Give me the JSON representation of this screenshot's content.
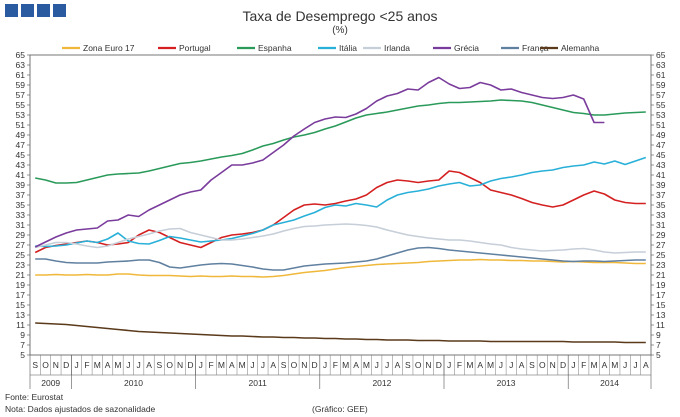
{
  "header": {
    "title": "Taxa de Desemprego <25 anos",
    "subtitle": "(%)",
    "logo_color": "#2a5aa0"
  },
  "footer": {
    "source": "Fonte: Eurostat",
    "note": "Nota: Dados ajustados de sazonalidade",
    "credit": "(Gráfico: GEE)"
  },
  "chart_data": {
    "type": "line",
    "title": "Taxa de Desemprego <25 anos",
    "unit": "(%)",
    "legend_position": "top",
    "ylim": [
      5,
      65
    ],
    "ytick_step": 2,
    "grid": false,
    "periods": [
      "S",
      "O",
      "N",
      "D",
      "J",
      "F",
      "M",
      "A",
      "M",
      "J",
      "J",
      "A",
      "S",
      "O",
      "N",
      "D",
      "J",
      "F",
      "M",
      "A",
      "M",
      "J",
      "J",
      "A",
      "S",
      "O",
      "N",
      "D",
      "J",
      "F",
      "M",
      "A",
      "M",
      "J",
      "J",
      "A",
      "S",
      "O",
      "N",
      "D",
      "J",
      "F",
      "M",
      "A",
      "M",
      "J",
      "J",
      "A",
      "S",
      "O",
      "N",
      "D",
      "J",
      "F",
      "M",
      "A",
      "M",
      "J",
      "J",
      "A"
    ],
    "years": [
      {
        "label": "2009",
        "months": 4
      },
      {
        "label": "2010",
        "months": 12
      },
      {
        "label": "2011",
        "months": 12
      },
      {
        "label": "2012",
        "months": 12
      },
      {
        "label": "2013",
        "months": 12
      },
      {
        "label": "2014",
        "months": 8
      }
    ],
    "series": [
      {
        "name": "Zona Euro 17",
        "color": "#f0b83a",
        "values": [
          21.0,
          21.0,
          21.1,
          21.0,
          21.0,
          21.1,
          21.0,
          21.0,
          21.2,
          21.2,
          21.0,
          20.9,
          20.9,
          20.9,
          20.8,
          20.7,
          20.8,
          20.7,
          20.7,
          20.8,
          20.7,
          20.7,
          20.6,
          20.7,
          20.9,
          21.2,
          21.5,
          21.7,
          21.9,
          22.2,
          22.5,
          22.7,
          22.9,
          23.1,
          23.2,
          23.3,
          23.4,
          23.5,
          23.7,
          23.8,
          23.9,
          24.0,
          24.0,
          24.1,
          24.0,
          24.0,
          23.9,
          23.9,
          23.8,
          23.8,
          23.7,
          23.6,
          23.7,
          23.6,
          23.5,
          23.5,
          23.5,
          23.4,
          23.3,
          23.3
        ]
      },
      {
        "name": "Portugal",
        "color": "#d42020",
        "values": [
          25.5,
          26.5,
          26.9,
          27.2,
          27.5,
          27.8,
          27.5,
          27.0,
          27.2,
          27.5,
          29.0,
          30.0,
          29.5,
          28.5,
          27.5,
          27.0,
          26.5,
          27.5,
          28.5,
          29.0,
          29.2,
          29.5,
          30.0,
          31.0,
          32.5,
          34.0,
          35.0,
          35.2,
          35.0,
          35.3,
          35.8,
          36.2,
          37.0,
          38.5,
          39.5,
          40.0,
          39.8,
          39.5,
          39.8,
          40.0,
          41.8,
          41.5,
          40.5,
          39.5,
          38.0,
          37.5,
          37.0,
          36.3,
          35.5,
          35.0,
          34.6,
          35.0,
          36.0,
          37.0,
          37.8,
          37.2,
          36.0,
          35.5,
          35.3,
          35.3
        ]
      },
      {
        "name": "Espanha",
        "color": "#2a9a5a",
        "values": [
          40.4,
          40.0,
          39.4,
          39.4,
          39.5,
          40.0,
          40.5,
          41.0,
          41.2,
          41.3,
          41.4,
          41.8,
          42.3,
          42.8,
          43.3,
          43.5,
          43.8,
          44.2,
          44.6,
          44.9,
          45.3,
          46.0,
          46.8,
          47.3,
          48.0,
          48.6,
          49.0,
          49.5,
          50.2,
          50.8,
          51.6,
          52.4,
          53.0,
          53.3,
          53.6,
          54.0,
          54.4,
          54.8,
          55.0,
          55.3,
          55.5,
          55.5,
          55.6,
          55.7,
          55.8,
          56.0,
          55.9,
          55.8,
          55.5,
          55.0,
          54.5,
          54.0,
          53.5,
          53.3,
          53.0,
          53.0,
          53.2,
          53.4,
          53.5,
          53.6
        ]
      },
      {
        "name": "Itália",
        "color": "#28b0d8",
        "values": [
          26.8,
          26.7,
          26.8,
          27.0,
          27.4,
          27.8,
          27.5,
          28.2,
          29.4,
          27.8,
          27.3,
          27.2,
          27.9,
          28.7,
          28.4,
          28.0,
          27.6,
          27.8,
          28.0,
          28.3,
          28.8,
          29.3,
          30.0,
          31.0,
          31.5,
          32.0,
          32.8,
          33.5,
          34.5,
          35.0,
          34.8,
          35.3,
          35.0,
          34.6,
          36.0,
          37.0,
          37.5,
          37.8,
          38.2,
          38.8,
          39.2,
          39.5,
          38.8,
          39.0,
          39.8,
          40.3,
          40.6,
          41.0,
          41.5,
          41.8,
          42.0,
          42.5,
          42.8,
          43.0,
          43.6,
          43.2,
          43.8,
          43.1,
          43.8,
          44.5
        ]
      },
      {
        "name": "Irlanda",
        "color": "#c6ced8",
        "values": [
          26.5,
          27.0,
          27.5,
          27.5,
          27.2,
          26.8,
          26.5,
          26.8,
          27.5,
          28.2,
          28.7,
          29.2,
          29.8,
          30.2,
          30.3,
          29.5,
          29.0,
          28.5,
          28.0,
          28.0,
          28.2,
          28.5,
          28.8,
          29.2,
          29.8,
          30.3,
          30.7,
          30.8,
          31.0,
          31.1,
          31.2,
          31.1,
          30.9,
          30.6,
          30.0,
          29.5,
          29.0,
          28.7,
          28.4,
          28.2,
          28.0,
          28.0,
          27.8,
          27.5,
          27.2,
          27.0,
          26.5,
          26.2,
          26.0,
          25.8,
          25.9,
          26.0,
          26.2,
          26.3,
          26.0,
          25.6,
          25.4,
          25.5,
          25.6,
          25.6
        ]
      },
      {
        "name": "Grécia",
        "color": "#7a3c9c",
        "values": [
          26.6,
          27.6,
          28.6,
          29.4,
          30.0,
          30.2,
          30.4,
          31.8,
          32.0,
          33.0,
          32.7,
          34.0,
          35.0,
          36.0,
          37.0,
          37.6,
          38.0,
          40.0,
          41.5,
          43.0,
          43.0,
          43.4,
          44.0,
          45.5,
          47.0,
          48.8,
          50.2,
          51.5,
          52.2,
          52.6,
          52.5,
          53.2,
          54.3,
          55.8,
          56.8,
          57.3,
          58.2,
          58.0,
          59.5,
          60.5,
          59.2,
          58.3,
          58.5,
          59.5,
          59.0,
          58.0,
          58.2,
          57.5,
          57.0,
          56.5,
          56.3,
          56.5,
          57.0,
          56.2,
          51.5,
          51.5,
          null,
          null,
          null,
          null
        ]
      },
      {
        "name": "França",
        "color": "#6080a0",
        "values": [
          24.2,
          24.2,
          23.8,
          23.5,
          23.4,
          23.4,
          23.4,
          23.6,
          23.7,
          23.8,
          24.0,
          24.0,
          23.5,
          22.6,
          22.4,
          22.7,
          23.0,
          23.2,
          23.3,
          23.2,
          22.9,
          22.6,
          22.2,
          22.0,
          22.0,
          22.4,
          22.8,
          23.0,
          23.2,
          23.3,
          23.4,
          23.6,
          23.8,
          24.2,
          24.8,
          25.4,
          26.0,
          26.4,
          26.5,
          26.3,
          26.0,
          25.8,
          25.6,
          25.4,
          25.2,
          25.0,
          24.8,
          24.6,
          24.4,
          24.2,
          24.0,
          23.8,
          23.7,
          23.8,
          23.8,
          23.7,
          23.8,
          23.9,
          24.0,
          24.0
        ]
      },
      {
        "name": "Alemanha",
        "color": "#5a3a1a",
        "values": [
          11.4,
          11.3,
          11.2,
          11.1,
          10.9,
          10.7,
          10.5,
          10.3,
          10.1,
          9.9,
          9.7,
          9.6,
          9.5,
          9.4,
          9.3,
          9.2,
          9.1,
          9.0,
          8.9,
          8.8,
          8.8,
          8.7,
          8.6,
          8.6,
          8.5,
          8.5,
          8.4,
          8.4,
          8.3,
          8.3,
          8.2,
          8.2,
          8.1,
          8.1,
          8.0,
          8.0,
          8.0,
          7.9,
          7.9,
          7.9,
          7.8,
          7.8,
          7.8,
          7.8,
          7.7,
          7.7,
          7.7,
          7.7,
          7.7,
          7.7,
          7.7,
          7.7,
          7.6,
          7.6,
          7.6,
          7.6,
          7.6,
          7.5,
          7.5,
          7.5
        ]
      }
    ]
  }
}
